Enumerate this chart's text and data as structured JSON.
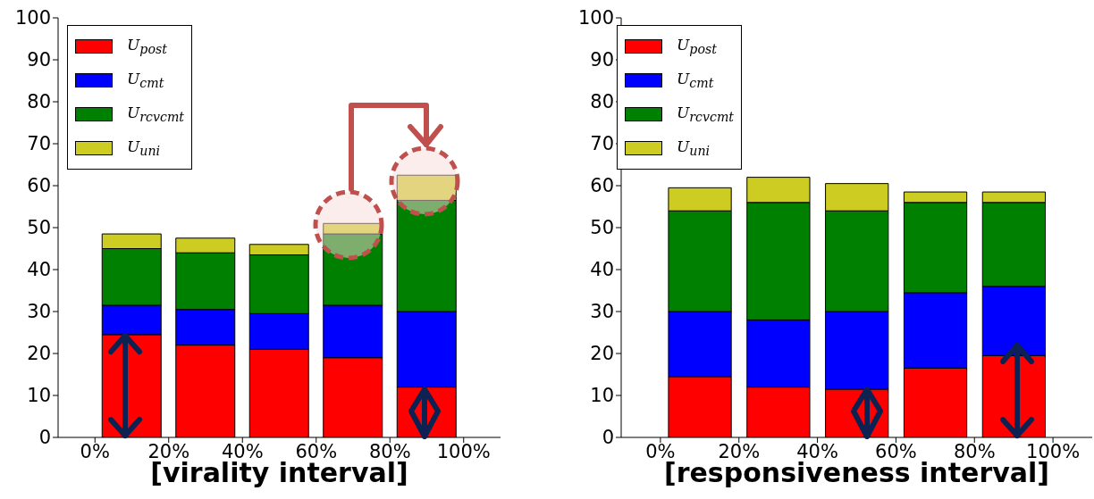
{
  "chart_data": [
    {
      "type": "bar",
      "stacked": true,
      "xlabel": "[virality interval]",
      "x": [
        10,
        30,
        50,
        70,
        90
      ],
      "xlim": [
        -10,
        110
      ],
      "xticks": [
        {
          "value": 0,
          "label": "0%"
        },
        {
          "value": 20,
          "label": "20%"
        },
        {
          "value": 40,
          "label": "40%"
        },
        {
          "value": 60,
          "label": "60%"
        },
        {
          "value": 80,
          "label": "80%"
        },
        {
          "value": 100,
          "label": "100%"
        }
      ],
      "ylim": [
        0,
        100
      ],
      "yticks": [
        0,
        10,
        20,
        30,
        40,
        50,
        60,
        70,
        80,
        90,
        100
      ],
      "grid": false,
      "legend": "top left",
      "series": [
        {
          "name": "U$_{post}$",
          "color": "#ff0000",
          "values": [
            24.5,
            22,
            21,
            19,
            12
          ]
        },
        {
          "name": "U$_{cmt}$",
          "color": "#0000ff",
          "values": [
            7,
            8.5,
            8.5,
            12.5,
            18
          ]
        },
        {
          "name": "U$_{rcvcmt}$",
          "color": "#008000",
          "values": [
            13.5,
            13.5,
            14,
            17,
            26.5
          ]
        },
        {
          "name": "U$_{uni}$",
          "color": "#cccc22",
          "values": [
            3.5,
            3.5,
            2.5,
            2.5,
            6
          ]
        }
      ]
    },
    {
      "type": "bar",
      "stacked": true,
      "xlabel": "[responsiveness interval]",
      "x": [
        10,
        30,
        50,
        70,
        90
      ],
      "xlim": [
        -10,
        110
      ],
      "xticks": [
        {
          "value": 0,
          "label": "0%"
        },
        {
          "value": 20,
          "label": "20%"
        },
        {
          "value": 40,
          "label": "40%"
        },
        {
          "value": 60,
          "label": "60%"
        },
        {
          "value": 80,
          "label": "80%"
        },
        {
          "value": 100,
          "label": "100%"
        }
      ],
      "ylim": [
        0,
        100
      ],
      "yticks": [
        0,
        10,
        20,
        30,
        40,
        50,
        60,
        70,
        80,
        90,
        100
      ],
      "grid": false,
      "legend": "top left",
      "series": [
        {
          "name": "U$_{post}$",
          "color": "#ff0000",
          "values": [
            14.5,
            12,
            11.5,
            16.5,
            19.5
          ]
        },
        {
          "name": "U$_{cmt}$",
          "color": "#0000ff",
          "values": [
            15.5,
            16,
            18.5,
            18,
            16.5
          ]
        },
        {
          "name": "U$_{rcvcmt}$",
          "color": "#008000",
          "values": [
            24,
            28,
            24,
            21.5,
            20
          ]
        },
        {
          "name": "U$_{uni}$",
          "color": "#cccc22",
          "values": [
            5.5,
            6,
            6.5,
            2.5,
            2.5
          ]
        }
      ]
    }
  ]
}
